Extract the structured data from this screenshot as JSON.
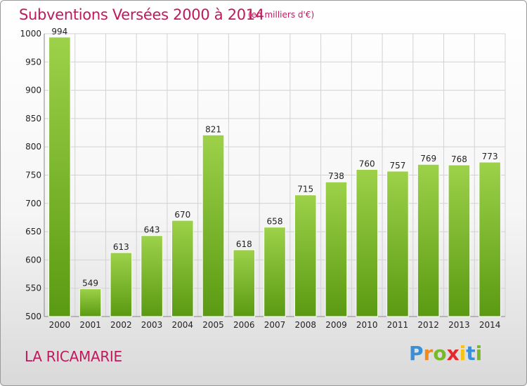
{
  "header": {
    "title": "Subventions Versées 2000 à 2014",
    "unit": "(en milliers d'€)"
  },
  "footer": {
    "location": "LA RICAMARIE",
    "logo": {
      "letters": [
        "P",
        "r",
        "o",
        "x",
        "i",
        "t",
        "i"
      ],
      "colors": [
        "#3a8fd6",
        "#f08a1c",
        "#79b829",
        "#e8272d",
        "#f5c312",
        "#3a8fd6",
        "#79b829"
      ]
    }
  },
  "chart_data": {
    "type": "bar",
    "title": "Subventions Versées 2000 à 2014",
    "xlabel": "",
    "ylabel": "",
    "categories": [
      "2000",
      "2001",
      "2002",
      "2003",
      "2004",
      "2005",
      "2006",
      "2007",
      "2008",
      "2009",
      "2010",
      "2011",
      "2012",
      "2013",
      "2014"
    ],
    "values": [
      994,
      549,
      613,
      643,
      670,
      821,
      618,
      658,
      715,
      738,
      760,
      757,
      769,
      768,
      773
    ],
    "data_labels": [
      "994",
      "549",
      "613",
      "643",
      "670",
      "821",
      "618",
      "658",
      "715",
      "738",
      "760",
      "757",
      "769",
      "768",
      "773"
    ],
    "ylim": [
      500,
      1000
    ],
    "yticks": [
      500,
      550,
      600,
      650,
      700,
      750,
      800,
      850,
      900,
      950,
      1000
    ],
    "grid": true,
    "legend": "none",
    "bar_color_top": "#9dd14a",
    "bar_color_bottom": "#5a9a12"
  }
}
